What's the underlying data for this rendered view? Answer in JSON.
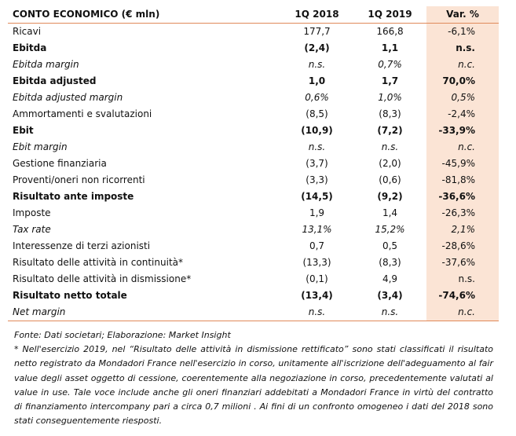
{
  "table": {
    "headers": [
      "CONTO ECONOMICO (€ mln)",
      "1Q 2018",
      "1Q 2019",
      "Var. %"
    ],
    "rows": [
      {
        "label": "Ricavi",
        "q1_2018": "177,7",
        "q1_2019": "166,8",
        "var": "-6,1%",
        "style": "normal"
      },
      {
        "label": "Ebitda",
        "q1_2018": "(2,4)",
        "q1_2019": "1,1",
        "var": "n.s.",
        "style": "bold"
      },
      {
        "label": "Ebitda margin",
        "q1_2018": "n.s.",
        "q1_2019": "0,7%",
        "var": "n.c.",
        "style": "italic"
      },
      {
        "label": "Ebitda adjusted",
        "q1_2018": "1,0",
        "q1_2019": "1,7",
        "var": "70,0%",
        "style": "bold"
      },
      {
        "label": "Ebitda adjusted margin",
        "q1_2018": "0,6%",
        "q1_2019": "1,0%",
        "var": "0,5%",
        "style": "italic"
      },
      {
        "label": "Ammortamenti e svalutazioni",
        "q1_2018": "(8,5)",
        "q1_2019": "(8,3)",
        "var": "-2,4%",
        "style": "normal"
      },
      {
        "label": "Ebit",
        "q1_2018": "(10,9)",
        "q1_2019": "(7,2)",
        "var": "-33,9%",
        "style": "bold"
      },
      {
        "label": "Ebit margin",
        "q1_2018": "n.s.",
        "q1_2019": "n.s.",
        "var": "n.c.",
        "style": "italic"
      },
      {
        "label": "Gestione finanziaria",
        "q1_2018": "(3,7)",
        "q1_2019": "(2,0)",
        "var": "-45,9%",
        "style": "normal"
      },
      {
        "label": "Proventi/oneri non ricorrenti",
        "q1_2018": "(3,3)",
        "q1_2019": "(0,6)",
        "var": "-81,8%",
        "style": "normal"
      },
      {
        "label": "Risultato ante imposte",
        "q1_2018": "(14,5)",
        "q1_2019": "(9,2)",
        "var": "-36,6%",
        "style": "bold"
      },
      {
        "label": "Imposte",
        "q1_2018": "1,9",
        "q1_2019": "1,4",
        "var": "-26,3%",
        "style": "normal"
      },
      {
        "label": "Tax rate",
        "q1_2018": "13,1%",
        "q1_2019": "15,2%",
        "var": "2,1%",
        "style": "italic"
      },
      {
        "label": "Interessenze di terzi azionisti",
        "q1_2018": "0,7",
        "q1_2019": "0,5",
        "var": "-28,6%",
        "style": "normal"
      },
      {
        "label": "Risultato delle attività in continuità*",
        "q1_2018": "(13,3)",
        "q1_2019": "(8,3)",
        "var": "-37,6%",
        "style": "normal"
      },
      {
        "label": "Risultato delle attività in dismissione*",
        "q1_2018": "(0,1)",
        "q1_2019": "4,9",
        "var": "n.s.",
        "style": "normal"
      },
      {
        "label": "Risultato netto totale",
        "q1_2018": "(13,4)",
        "q1_2019": "(3,4)",
        "var": "-74,6%",
        "style": "bold"
      },
      {
        "label": "Net margin",
        "q1_2018": "n.s.",
        "q1_2019": "n.s.",
        "var": "n.c.",
        "style": "italic"
      }
    ]
  },
  "notes": {
    "source": "Fonte: Dati societari; Elaborazione: Market Insight",
    "footnote": "* Nell'esercizio 2019, nel “Risultato delle attività in dismissione rettificato” sono stati classificati il risultato netto registrato da Mondadori France nell'esercizio in corso, unitamente all'iscrizione dell'adeguamento al fair value degli asset oggetto di cessione, coerentemente alla negoziazione in corso, precedentemente valutati al value in use. Tale voce include anche gli oneri finanziari addebitati a Mondadori France in virtù del contratto di finanziamento intercompany pari a circa 0,7 milioni . Ai fini di un confronto omogeneo i dati del 2018 sono stati conseguentemente riesposti."
  },
  "colors": {
    "accent_rule": "#e08a5a",
    "var_column_bg": "#fbe4d5"
  }
}
